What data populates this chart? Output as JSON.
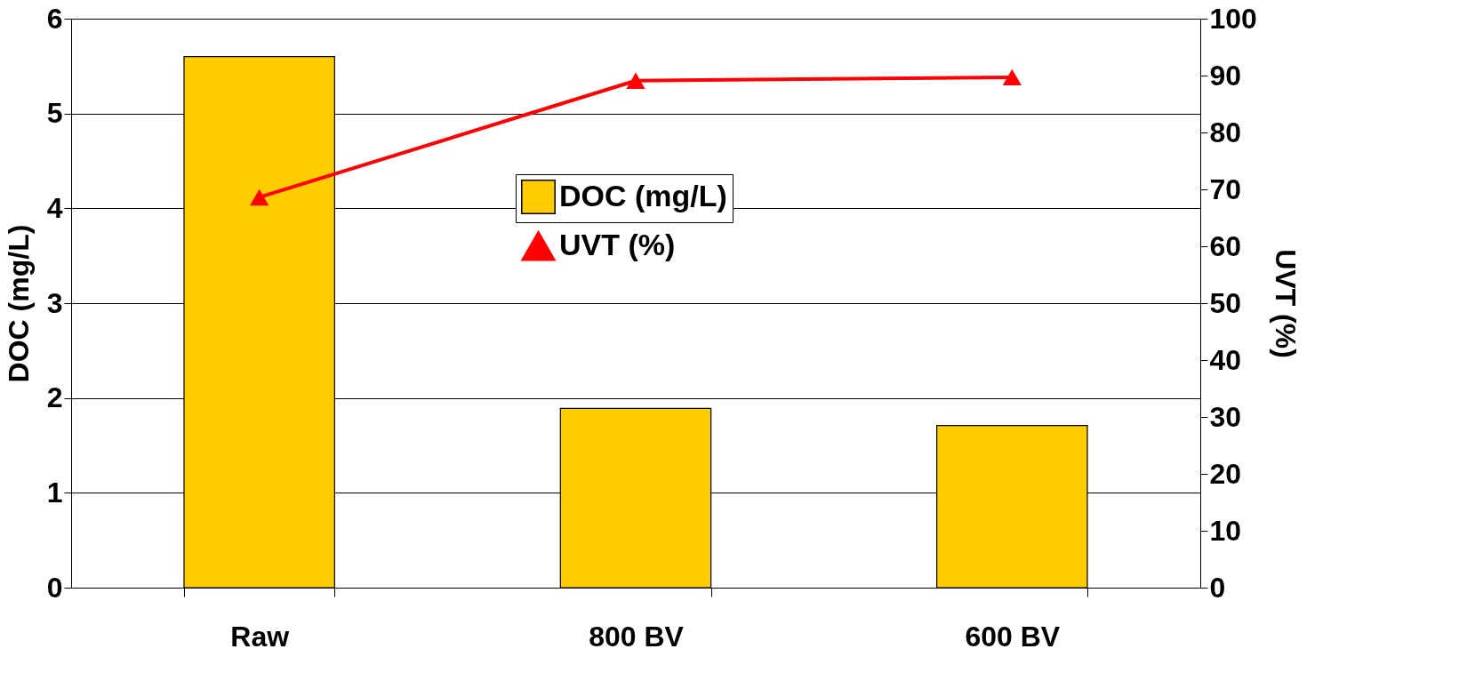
{
  "chart_data": {
    "type": "bar",
    "categories": [
      "Raw",
      "800 BV",
      "600 BV"
    ],
    "ylabel": "DOC (mg/L)",
    "y2label": "UVT (%)",
    "ylim": [
      0,
      6
    ],
    "yticks": [
      0,
      1,
      2,
      3,
      4,
      5,
      6
    ],
    "y2lim": [
      0,
      100
    ],
    "y2ticks": [
      0,
      10,
      20,
      30,
      40,
      50,
      60,
      70,
      80,
      90,
      100
    ],
    "grid": "y",
    "legend": "top",
    "marker": "triangle",
    "line_style": "solid",
    "series": [
      {
        "name": "DOC (mg/L)",
        "color": "#ffcc00",
        "values": [
          5.6,
          1.89,
          1.71
        ]
      },
      {
        "name": "UVT (%)",
        "type": "line",
        "axis": "y2",
        "color": "#ff0000",
        "values": [
          68.6,
          89.1,
          89.7
        ]
      }
    ]
  }
}
